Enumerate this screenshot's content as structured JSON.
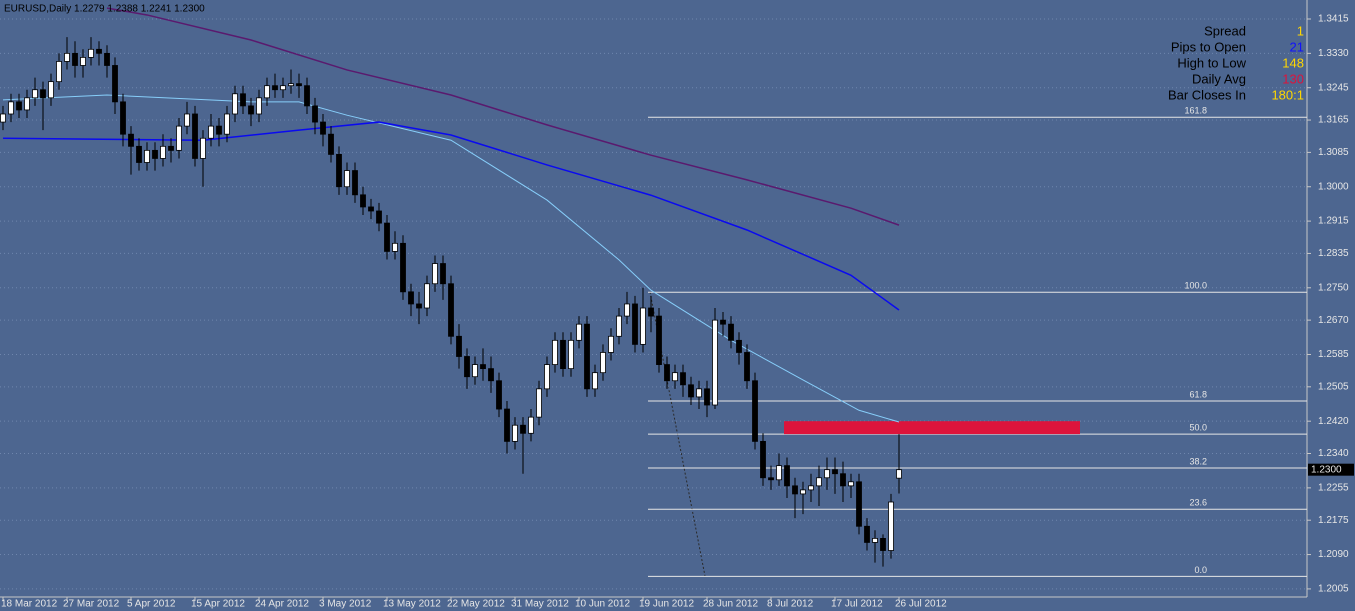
{
  "chart_data": {
    "type": "candlestick",
    "title": "EURUSD,Daily  1.2279 1.2388 1.2241 1.2300",
    "categories": [
      "18 Mar 2012",
      null,
      null,
      null,
      null,
      null,
      null,
      null,
      "27 Mar 2012",
      null,
      null,
      null,
      null,
      null,
      null,
      null,
      "5 Apr 2012",
      null,
      null,
      null,
      null,
      null,
      null,
      null,
      "15 Apr 2012",
      null,
      null,
      null,
      null,
      null,
      null,
      null,
      "24 Apr 2012",
      null,
      null,
      null,
      null,
      null,
      null,
      null,
      "3 May 2012",
      null,
      null,
      null,
      null,
      null,
      null,
      null,
      "13 May 2012",
      null,
      null,
      null,
      null,
      null,
      null,
      null,
      "22 May 2012",
      null,
      null,
      null,
      null,
      null,
      null,
      null,
      "31 May 2012",
      null,
      null,
      null,
      null,
      null,
      null,
      null,
      "10 Jun 2012",
      null,
      null,
      null,
      null,
      null,
      null,
      null,
      "19 Jun 2012",
      null,
      null,
      null,
      null,
      null,
      null,
      null,
      "28 Jun 2012",
      null,
      null,
      null,
      null,
      null,
      null,
      null,
      "8 Jul 2012",
      null,
      null,
      null,
      null,
      null,
      null,
      null,
      "17 Jul 2012",
      null,
      null,
      null,
      null,
      null,
      null,
      null,
      "26 Jul 2012"
    ],
    "candles": [
      [
        1.316,
        1.32,
        1.314,
        1.318
      ],
      [
        1.318,
        1.323,
        1.316,
        1.321
      ],
      [
        1.321,
        1.323,
        1.317,
        1.319
      ],
      [
        1.319,
        1.324,
        1.317,
        1.322
      ],
      [
        1.322,
        1.327,
        1.32,
        1.324
      ],
      [
        1.324,
        1.326,
        1.314,
        1.322
      ],
      [
        1.322,
        1.328,
        1.32,
        1.326
      ],
      [
        1.326,
        1.333,
        1.324,
        1.331
      ],
      [
        1.331,
        1.337,
        1.329,
        1.333
      ],
      [
        1.333,
        1.336,
        1.327,
        1.33
      ],
      [
        1.33,
        1.334,
        1.327,
        1.332
      ],
      [
        1.332,
        1.337,
        1.33,
        1.334
      ],
      [
        1.334,
        1.336,
        1.33,
        1.333
      ],
      [
        1.333,
        1.335,
        1.327,
        1.33
      ],
      [
        1.33,
        1.332,
        1.318,
        1.321
      ],
      [
        1.321,
        1.323,
        1.31,
        1.313
      ],
      [
        1.313,
        1.315,
        1.303,
        1.31
      ],
      [
        1.31,
        1.312,
        1.304,
        1.306
      ],
      [
        1.306,
        1.311,
        1.304,
        1.309
      ],
      [
        1.309,
        1.311,
        1.304,
        1.307
      ],
      [
        1.307,
        1.313,
        1.305,
        1.31
      ],
      [
        1.31,
        1.312,
        1.306,
        1.309
      ],
      [
        1.309,
        1.317,
        1.307,
        1.315
      ],
      [
        1.315,
        1.321,
        1.313,
        1.318
      ],
      [
        1.318,
        1.32,
        1.305,
        1.307
      ],
      [
        1.307,
        1.314,
        1.3,
        1.312
      ],
      [
        1.312,
        1.318,
        1.31,
        1.315
      ],
      [
        1.315,
        1.317,
        1.31,
        1.313
      ],
      [
        1.313,
        1.32,
        1.311,
        1.318
      ],
      [
        1.318,
        1.325,
        1.316,
        1.323
      ],
      [
        1.323,
        1.325,
        1.318,
        1.32
      ],
      [
        1.32,
        1.322,
        1.315,
        1.318
      ],
      [
        1.318,
        1.324,
        1.316,
        1.322
      ],
      [
        1.322,
        1.327,
        1.32,
        1.325
      ],
      [
        1.325,
        1.328,
        1.322,
        1.324
      ],
      [
        1.324,
        1.327,
        1.322,
        1.325
      ],
      [
        1.325,
        1.329,
        1.323,
        1.3255
      ],
      [
        1.3255,
        1.328,
        1.322,
        1.325
      ],
      [
        1.325,
        1.327,
        1.318,
        1.32
      ],
      [
        1.32,
        1.322,
        1.313,
        1.316
      ],
      [
        1.316,
        1.318,
        1.31,
        1.313
      ],
      [
        1.313,
        1.315,
        1.306,
        1.308
      ],
      [
        1.308,
        1.31,
        1.298,
        1.3
      ],
      [
        1.3,
        1.306,
        1.298,
        1.304
      ],
      [
        1.304,
        1.306,
        1.296,
        1.298
      ],
      [
        1.298,
        1.3,
        1.293,
        1.295
      ],
      [
        1.295,
        1.297,
        1.292,
        1.294
      ],
      [
        1.294,
        1.296,
        1.289,
        1.291
      ],
      [
        1.291,
        1.293,
        1.282,
        1.284
      ],
      [
        1.284,
        1.289,
        1.282,
        1.286
      ],
      [
        1.286,
        1.288,
        1.272,
        1.274
      ],
      [
        1.274,
        1.276,
        1.268,
        1.271
      ],
      [
        1.271,
        1.274,
        1.266,
        1.27
      ],
      [
        1.27,
        1.278,
        1.268,
        1.276
      ],
      [
        1.276,
        1.283,
        1.274,
        1.281
      ],
      [
        1.281,
        1.283,
        1.272,
        1.276
      ],
      [
        1.276,
        1.278,
        1.261,
        1.263
      ],
      [
        1.263,
        1.266,
        1.255,
        1.258
      ],
      [
        1.258,
        1.26,
        1.25,
        1.253
      ],
      [
        1.253,
        1.258,
        1.251,
        1.256
      ],
      [
        1.256,
        1.26,
        1.252,
        1.255
      ],
      [
        1.255,
        1.258,
        1.249,
        1.252
      ],
      [
        1.252,
        1.254,
        1.243,
        1.245
      ],
      [
        1.245,
        1.247,
        1.234,
        1.237
      ],
      [
        1.237,
        1.243,
        1.235,
        1.241
      ],
      [
        1.241,
        1.243,
        1.229,
        1.239
      ],
      [
        1.239,
        1.245,
        1.237,
        1.243
      ],
      [
        1.243,
        1.252,
        1.241,
        1.25
      ],
      [
        1.25,
        1.258,
        1.248,
        1.256
      ],
      [
        1.256,
        1.264,
        1.254,
        1.262
      ],
      [
        1.262,
        1.264,
        1.253,
        1.255
      ],
      [
        1.255,
        1.264,
        1.253,
        1.262
      ],
      [
        1.262,
        1.268,
        1.26,
        1.266
      ],
      [
        1.266,
        1.268,
        1.248,
        1.25
      ],
      [
        1.25,
        1.256,
        1.248,
        1.254
      ],
      [
        1.254,
        1.261,
        1.252,
        1.259
      ],
      [
        1.259,
        1.265,
        1.257,
        1.263
      ],
      [
        1.263,
        1.27,
        1.261,
        1.268
      ],
      [
        1.268,
        1.274,
        1.266,
        1.271
      ],
      [
        1.271,
        1.273,
        1.259,
        1.261
      ],
      [
        1.261,
        1.275,
        1.259,
        1.27
      ],
      [
        1.27,
        1.273,
        1.264,
        1.268
      ],
      [
        1.268,
        1.27,
        1.254,
        1.256
      ],
      [
        1.256,
        1.258,
        1.25,
        1.252
      ],
      [
        1.252,
        1.256,
        1.25,
        1.254
      ],
      [
        1.254,
        1.256,
        1.248,
        1.251
      ],
      [
        1.251,
        1.253,
        1.246,
        1.248
      ],
      [
        1.248,
        1.252,
        1.245,
        1.25
      ],
      [
        1.25,
        1.252,
        1.243,
        1.246
      ],
      [
        1.246,
        1.27,
        1.245,
        1.267
      ],
      [
        1.267,
        1.269,
        1.263,
        1.266
      ],
      [
        1.266,
        1.268,
        1.26,
        1.262
      ],
      [
        1.262,
        1.264,
        1.256,
        1.259
      ],
      [
        1.259,
        1.261,
        1.25,
        1.252
      ],
      [
        1.252,
        1.254,
        1.235,
        1.237
      ],
      [
        1.237,
        1.239,
        1.226,
        1.228
      ],
      [
        1.228,
        1.231,
        1.225,
        1.2275
      ],
      [
        1.2275,
        1.234,
        1.226,
        1.231
      ],
      [
        1.231,
        1.233,
        1.223,
        1.226
      ],
      [
        1.226,
        1.228,
        1.218,
        1.224
      ],
      [
        1.224,
        1.227,
        1.219,
        1.225
      ],
      [
        1.225,
        1.229,
        1.222,
        1.226
      ],
      [
        1.226,
        1.231,
        1.221,
        1.228
      ],
      [
        1.228,
        1.233,
        1.225,
        1.23
      ],
      [
        1.23,
        1.233,
        1.224,
        1.229
      ],
      [
        1.229,
        1.232,
        1.222,
        1.226
      ],
      [
        1.226,
        1.229,
        1.223,
        1.227
      ],
      [
        1.227,
        1.229,
        1.214,
        1.216
      ],
      [
        1.216,
        1.218,
        1.21,
        1.212
      ],
      [
        1.212,
        1.215,
        1.207,
        1.213
      ],
      [
        1.213,
        1.214,
        1.206,
        1.21
      ],
      [
        1.21,
        1.224,
        1.208,
        1.222
      ],
      [
        1.2279,
        1.2388,
        1.2241,
        1.23
      ]
    ],
    "up_color": "#ffffff",
    "down_color": "#000000",
    "wick_color": "#000000",
    "series": [
      {
        "color": "#87cefa",
        "x": [
          0,
          13,
          31,
          37,
          43,
          56,
          68,
          77,
          81,
          91,
          100,
          107,
          112
        ],
        "values": [
          1.3215,
          1.3227,
          1.321,
          1.321,
          1.3177,
          1.3115,
          1.2967,
          1.2819,
          1.2744,
          1.262,
          1.2522,
          1.2447,
          1.2418
        ]
      },
      {
        "color": "#0a0af0",
        "x": [
          0,
          25,
          37,
          47,
          56,
          68,
          81,
          93,
          106,
          112
        ],
        "values": [
          1.312,
          1.3115,
          1.314,
          1.316,
          1.3128,
          1.3054,
          1.2979,
          1.2893,
          1.2781,
          1.2695
        ]
      },
      {
        "color": "#5a1a6e",
        "x": [
          13,
          18,
          31,
          43,
          56,
          68,
          81,
          93,
          106,
          112
        ],
        "values": [
          1.3442,
          1.3425,
          1.3363,
          1.3289,
          1.3227,
          1.3153,
          1.3078,
          1.3017,
          1.2947,
          1.2905
        ]
      }
    ],
    "ylim": [
      1.1985,
      1.3462
    ],
    "yticks": [
      1.3415,
      {
        "value": 1.333,
        "label": "1.3330"
      },
      1.3245,
      1.3165,
      1.3085,
      {
        "value": 1.3,
        "label": "1.3000"
      },
      1.2915,
      1.2835,
      {
        "value": 1.275,
        "label": "1.2750"
      },
      {
        "value": 1.267,
        "label": "1.2670"
      },
      1.2585,
      1.2505,
      {
        "value": 1.242,
        "label": "1.2420"
      },
      {
        "value": 1.234,
        "label": "1.2340"
      },
      1.2255,
      1.2175,
      {
        "value": 1.209,
        "label": "1.2090"
      },
      1.2005
    ],
    "grid": true,
    "fib": {
      "color": "#e6e6e6",
      "levels": [
        {
          "label": "161.8",
          "value": 1.3172
        },
        {
          "label": "100.0",
          "value": 1.2739
        },
        {
          "label": "61.8",
          "value": 1.247
        },
        {
          "label": "50.0",
          "value": 1.2388
        },
        {
          "label": "38.2",
          "value": 1.2304
        },
        {
          "label": "23.6",
          "value": 1.2202
        },
        {
          "label": "0.0",
          "value": 1.2036
        }
      ]
    },
    "zone": {
      "top": 1.242,
      "bottom": 1.2388,
      "color": "#dc143c"
    },
    "last_price": {
      "value": 1.23,
      "label": "1.2300"
    },
    "info_panel": [
      {
        "label": "Spread",
        "value": 1,
        "color": "#ffd700"
      },
      {
        "label": "Pips to Open",
        "value": 21,
        "color": "#1010ff"
      },
      {
        "label": "High to Low",
        "value": 148,
        "color": "#ffd700"
      },
      {
        "label": "Daily Avg",
        "value": 130,
        "color": "#dc143c"
      },
      {
        "label": "Bar Closes In",
        "value": "180:1",
        "color": "#ffd700"
      }
    ]
  }
}
